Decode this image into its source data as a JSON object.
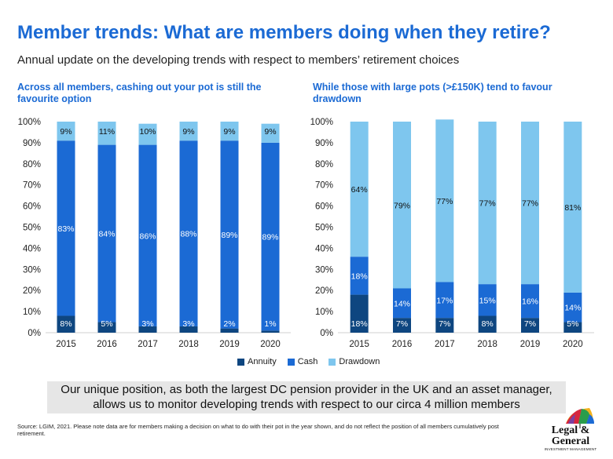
{
  "header": {
    "title": "Member trends: What are members doing when they retire?",
    "subtitle": "Annual update on the developing trends with respect to members’ retirement choices"
  },
  "panels": {
    "left_heading": "Across all members, cashing out your pot is still the favourite option",
    "right_heading": "While those with large pots (>£150K) tend to favour drawdown"
  },
  "colors": {
    "annuity": "#0e4680",
    "cash": "#1b6ad4",
    "drawdown": "#7ec6ee",
    "title": "#1b6ad4"
  },
  "chart_data": [
    {
      "type": "bar",
      "stacked": true,
      "categories": [
        "2015",
        "2016",
        "2017",
        "2018",
        "2019",
        "2020"
      ],
      "series": [
        {
          "name": "Annuity",
          "values": [
            8,
            5,
            3,
            3,
            2,
            1
          ]
        },
        {
          "name": "Cash",
          "values": [
            83,
            84,
            86,
            88,
            89,
            89
          ]
        },
        {
          "name": "Drawdown",
          "values": [
            9,
            11,
            10,
            9,
            9,
            9
          ]
        }
      ],
      "labels": {
        "Annuity": [
          "8%",
          "5%",
          "3%",
          "3%",
          "2%",
          "1%"
        ],
        "Cash": [
          "83%",
          "84%",
          "86%",
          "88%",
          "89%",
          "89%"
        ],
        "Drawdown": [
          "9%",
          "11%",
          "10%",
          "9%",
          "9%",
          "9%"
        ]
      },
      "yticks": [
        "0%",
        "10%",
        "20%",
        "30%",
        "40%",
        "50%",
        "60%",
        "70%",
        "80%",
        "90%",
        "100%"
      ],
      "ylim": [
        0,
        100
      ]
    },
    {
      "type": "bar",
      "stacked": true,
      "categories": [
        "2015",
        "2016",
        "2017",
        "2018",
        "2019",
        "2020"
      ],
      "series": [
        {
          "name": "Annuity",
          "values": [
            18,
            7,
            7,
            8,
            7,
            5
          ]
        },
        {
          "name": "Cash",
          "values": [
            18,
            14,
            17,
            15,
            16,
            14
          ]
        },
        {
          "name": "Drawdown",
          "values": [
            64,
            79,
            77,
            77,
            77,
            81
          ]
        }
      ],
      "labels": {
        "Annuity": [
          "18%",
          "7%",
          "7%",
          "8%",
          "7%",
          "5%"
        ],
        "Cash": [
          "18%",
          "14%",
          "17%",
          "15%",
          "16%",
          "14%"
        ],
        "Drawdown": [
          "64%",
          "79%",
          "77%",
          "77%",
          "77%",
          "81%"
        ]
      },
      "yticks": [
        "0%",
        "10%",
        "20%",
        "30%",
        "40%",
        "50%",
        "60%",
        "70%",
        "80%",
        "90%",
        "100%"
      ],
      "ylim": [
        0,
        100
      ]
    }
  ],
  "legend": {
    "items": [
      "Annuity",
      "Cash",
      "Drawdown"
    ]
  },
  "callout": {
    "text": "Our unique position, as both the largest DC pension provider in the UK and an asset manager, allows us to monitor developing trends with respect to our circa 4 million members"
  },
  "footer": {
    "source": "Source: LGIM, 2021. Please note data are for members making a decision on what to do with their pot in the year shown, and do not reflect the position of all members cumulatively post retirement."
  },
  "logo": {
    "name": "Legal & General",
    "tagline": "INVESTMENT MANAGEMENT"
  }
}
